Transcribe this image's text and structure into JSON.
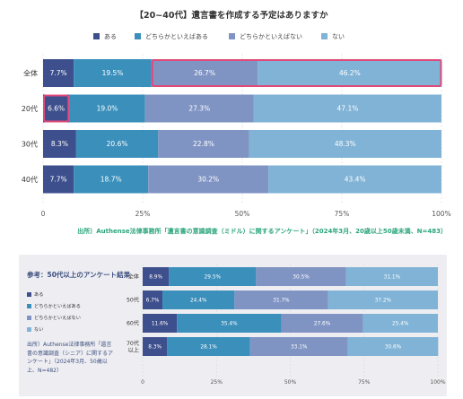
{
  "title": "【20~40代】遺言書を作成する予定はありますか",
  "colors": [
    "#3e4f8d",
    "#3a8fbb",
    "#8094c4",
    "#80b3d6"
  ],
  "legend": [
    "ある",
    "どちらかといえばある",
    "どちらかといえばない",
    "ない"
  ],
  "source_main": "出所）Authense法律事務所「遺言書の意識調査（ミドル）に関するアンケート」（2024年3月、20歳以上50歳未満、N=483）",
  "chart_data": [
    {
      "type": "bar",
      "orientation": "horizontal-stacked",
      "categories": [
        "全体",
        "20代",
        "30代",
        "40代"
      ],
      "series": [
        {
          "name": "ある",
          "values": [
            7.7,
            6.6,
            8.3,
            7.7
          ]
        },
        {
          "name": "どちらかといえばある",
          "values": [
            19.5,
            19.0,
            20.6,
            18.7
          ]
        },
        {
          "name": "どちらかといえばない",
          "values": [
            26.7,
            27.3,
            22.8,
            30.2
          ]
        },
        {
          "name": "ない",
          "values": [
            46.2,
            47.1,
            48.3,
            43.4
          ]
        }
      ],
      "data_labels": [
        [
          "7.7%",
          "19.5%",
          "26.7%",
          "46.2%"
        ],
        [
          "6.6%",
          "19.0%",
          "27.3%",
          "47.1%"
        ],
        [
          "8.3%",
          "20.6%",
          "22.8%",
          "48.3%"
        ],
        [
          "7.7%",
          "18.7%",
          "30.2%",
          "43.4%"
        ]
      ],
      "x_ticks": [
        "0",
        "25%",
        "50%",
        "75%",
        "100%"
      ],
      "xlim": [
        0,
        100
      ],
      "legend_position": "top",
      "highlighted": [
        {
          "category": "全体",
          "series": [
            "どちらかといえばない",
            "ない"
          ]
        },
        {
          "category": "20代",
          "series": [
            "ある"
          ]
        }
      ]
    },
    {
      "type": "bar",
      "orientation": "horizontal-stacked",
      "title": "参考：50代以上のアンケート結果",
      "categories": [
        "全体",
        "50代",
        "60代",
        "70代以上"
      ],
      "category_labels": [
        "全体",
        "50代",
        "60代",
        "70代\n以上"
      ],
      "series": [
        {
          "name": "ある",
          "values": [
            8.9,
            6.7,
            11.6,
            8.3
          ]
        },
        {
          "name": "どちらかといえばある",
          "values": [
            29.5,
            24.4,
            35.4,
            28.1
          ]
        },
        {
          "name": "どちらかといえばない",
          "values": [
            30.5,
            31.7,
            27.6,
            33.1
          ]
        },
        {
          "name": "ない",
          "values": [
            31.1,
            37.2,
            25.4,
            30.6
          ]
        }
      ],
      "data_labels": [
        [
          "8.9%",
          "29.5%",
          "30.5%",
          "31.1%"
        ],
        [
          "6.7%",
          "24.4%",
          "31.7%",
          "37.2%"
        ],
        [
          "11.6%",
          "35.4%",
          "27.6%",
          "25.4%"
        ],
        [
          "8.3%",
          "28.1%",
          "33.1%",
          "30.6%"
        ]
      ],
      "x_ticks": [
        "0",
        "25%",
        "50%",
        "75%",
        "100%"
      ],
      "xlim": [
        0,
        100
      ],
      "legend_position": "left",
      "source": "出所）Authense法律事務所「遺言書の意識調査（シニア）に関するアンケート」（2024年3月、50歳以上、N=482）"
    }
  ]
}
